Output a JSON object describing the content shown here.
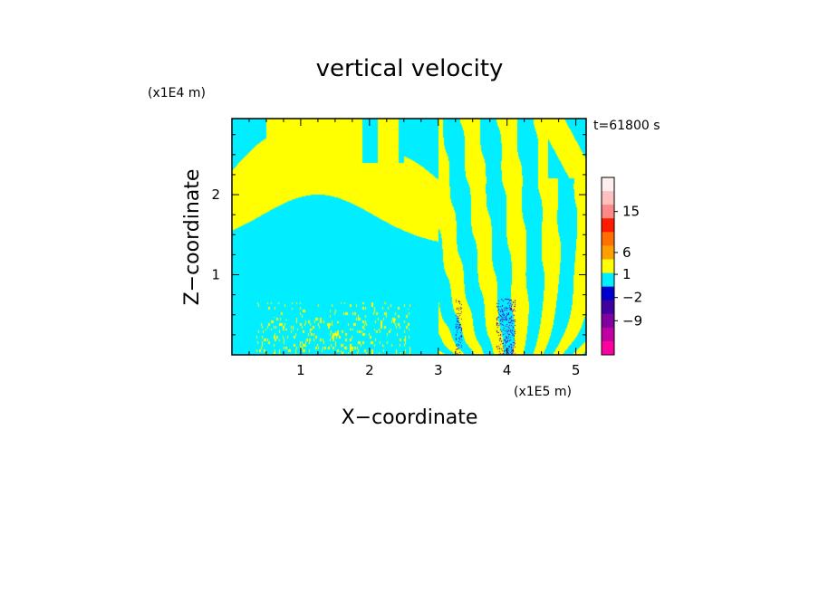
{
  "chart_data": {
    "type": "heatmap",
    "title": "vertical velocity",
    "xlabel": "X−coordinate",
    "ylabel": "Z−coordinate",
    "x_unit": "(x1E5 m)",
    "y_unit": "(x1E4 m)",
    "time_label": "t=61800 s",
    "xlim": [
      0,
      5.15
    ],
    "ylim": [
      0,
      2.95
    ],
    "x_ticks": [
      {
        "value": 1,
        "label": "1"
      },
      {
        "value": 2,
        "label": "2"
      },
      {
        "value": 3,
        "label": "3"
      },
      {
        "value": 4,
        "label": "4"
      },
      {
        "value": 5,
        "label": "5"
      }
    ],
    "y_ticks": [
      {
        "value": 1,
        "label": "1"
      },
      {
        "value": 2,
        "label": "2"
      }
    ],
    "colorbar": {
      "levels": [
        -9,
        -2,
        1,
        6,
        15
      ],
      "labels": [
        "15",
        "6",
        "1",
        "−2",
        "−9"
      ],
      "colors_top_to_bottom": [
        "#ffeeee",
        "#ffc0c0",
        "#ff8888",
        "#ff1a00",
        "#ff7000",
        "#ffa000",
        "#ffff00",
        "#00eeff",
        "#0000cc",
        "#4000a0",
        "#8000a0",
        "#c000a0",
        "#ff00a0"
      ]
    },
    "field_colors": {
      "negative_weak": "#00eeff",
      "positive_weak": "#ffff00",
      "strong_negative": "#3a00c0",
      "strong_positive": "#ff00a0",
      "frame": "#000000"
    }
  }
}
